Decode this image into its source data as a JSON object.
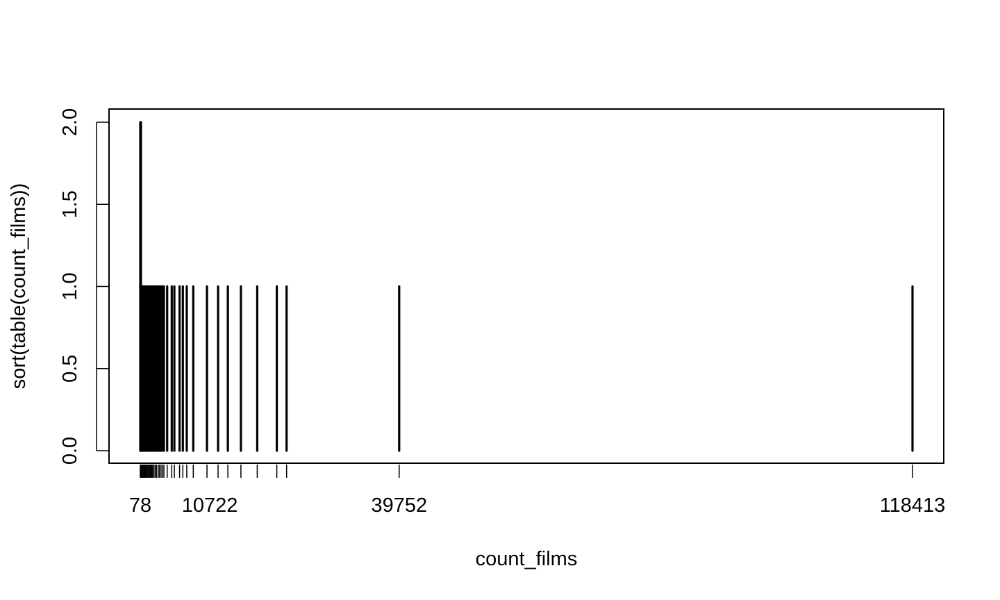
{
  "chart_data": {
    "type": "bar",
    "title": "",
    "xlabel": "count_films",
    "ylabel": "sort(table(count_films))",
    "ylim": [
      0,
      2
    ],
    "y_ticks": [
      "0.0",
      "0.5",
      "1.0",
      "1.5",
      "2.0"
    ],
    "x_ticks_labeled": [
      "78",
      "10722",
      "39752",
      "118413"
    ],
    "series": [
      {
        "x": [
          78,
          120,
          180,
          260,
          340,
          420,
          520,
          640,
          760,
          900,
          1050,
          1200,
          1350,
          1500,
          1650,
          1800,
          1950,
          2150,
          2350,
          2550,
          2800,
          3000,
          3250,
          3450,
          3700,
          4200,
          4900,
          5300,
          6100,
          6600,
          7200,
          8200,
          10300,
          12000,
          13500,
          15500,
          18000,
          21000,
          22500
        ],
        "values": [
          2,
          2,
          2,
          1,
          1,
          1,
          1,
          1,
          1,
          1,
          1,
          1,
          1,
          1,
          1,
          1,
          1,
          1,
          1,
          1,
          1,
          1,
          1,
          1,
          1,
          1,
          1,
          1,
          1,
          1,
          1,
          1,
          1,
          1,
          1,
          1,
          1,
          1,
          1
        ]
      },
      {
        "x": [
          39752,
          118413
        ],
        "values": [
          1,
          1
        ]
      }
    ],
    "grid": false,
    "legend": "none",
    "colors": {
      "bar": "#000000",
      "axis": "#000000",
      "background": "#ffffff"
    }
  }
}
